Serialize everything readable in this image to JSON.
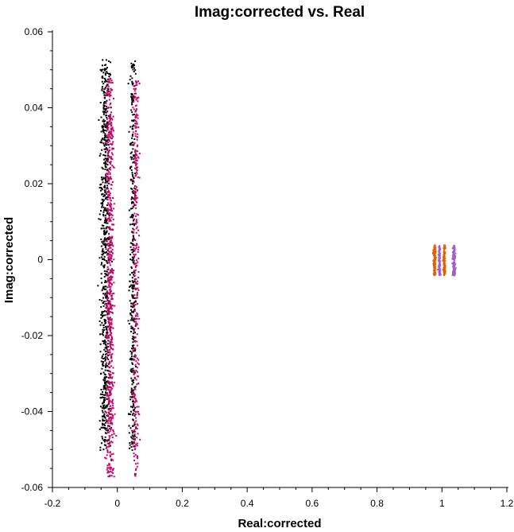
{
  "chart_data": {
    "type": "scatter",
    "title": "Imag:corrected vs. Real",
    "xlabel": "Real:corrected",
    "ylabel": "Imag:corrected",
    "xlim": [
      -0.2,
      1.2
    ],
    "ylim": [
      -0.06,
      0.06
    ],
    "x_ticks": [
      -0.2,
      0,
      0.2,
      0.4,
      0.6,
      0.8,
      1,
      1.2
    ],
    "x_tick_labels": [
      "-0.2",
      "0",
      "0.2",
      "0.4",
      "0.6",
      "0.8",
      "1",
      "1.2"
    ],
    "y_ticks": [
      -0.06,
      -0.04,
      -0.02,
      0,
      0.02,
      0.04,
      0.06
    ],
    "y_tick_labels": [
      "-0.06",
      "-0.04",
      "-0.02",
      "0",
      "0.02",
      "0.04",
      "0.06"
    ],
    "grid": false,
    "series": [
      {
        "color": "#000000",
        "clusters": [
          {
            "cx": -0.04,
            "sx": 0.018,
            "ymin": -0.05,
            "ymax": 0.053,
            "n": 700
          },
          {
            "cx": 0.045,
            "sx": 0.011,
            "ymin": -0.05,
            "ymax": 0.053,
            "n": 380
          }
        ]
      },
      {
        "color": "#cc0066",
        "clusters": [
          {
            "cx": -0.025,
            "sx": 0.014,
            "ymin": -0.057,
            "ymax": 0.048,
            "n": 650
          },
          {
            "cx": 0.055,
            "sx": 0.01,
            "ymin": -0.057,
            "ymax": 0.048,
            "n": 330
          }
        ]
      },
      {
        "color": "#e06000",
        "clusters": [
          {
            "cx": 0.975,
            "sx": 0.005,
            "ymin": -0.004,
            "ymax": 0.004,
            "n": 120
          },
          {
            "cx": 1.005,
            "sx": 0.004,
            "ymin": -0.004,
            "ymax": 0.004,
            "n": 110
          }
        ]
      },
      {
        "color": "#a060cc",
        "clusters": [
          {
            "cx": 0.99,
            "sx": 0.004,
            "ymin": -0.004,
            "ymax": 0.004,
            "n": 100
          },
          {
            "cx": 1.035,
            "sx": 0.005,
            "ymin": -0.004,
            "ymax": 0.004,
            "n": 140
          }
        ]
      }
    ]
  }
}
